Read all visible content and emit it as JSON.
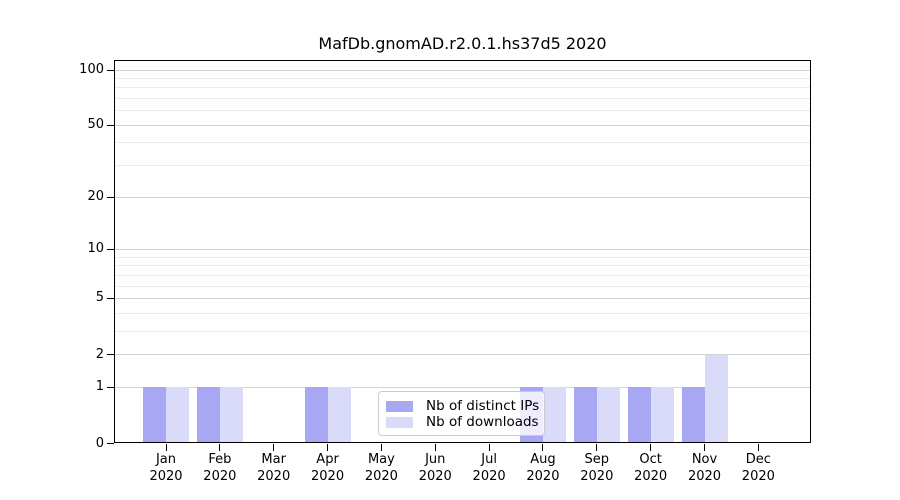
{
  "chart_data": {
    "type": "bar",
    "title": "MafDb.gnomAD.r2.0.1.hs37d5 2020",
    "xlabel": "",
    "ylabel": "",
    "categories": [
      "Jan 2020",
      "Feb 2020",
      "Mar 2020",
      "Apr 2020",
      "May 2020",
      "Jun 2020",
      "Jul 2020",
      "Aug 2020",
      "Sep 2020",
      "Oct 2020",
      "Nov 2020",
      "Dec 2020"
    ],
    "months": [
      "Jan",
      "Feb",
      "Mar",
      "Apr",
      "May",
      "Jun",
      "Jul",
      "Aug",
      "Sep",
      "Oct",
      "Nov",
      "Dec"
    ],
    "year": "2020",
    "series": [
      {
        "name": "Nb of distinct IPs",
        "color": "#a7a7f4",
        "values": [
          1,
          1,
          0,
          1,
          0,
          0,
          0,
          1,
          1,
          1,
          1,
          0
        ]
      },
      {
        "name": "Nb of downloads",
        "color": "#dadaf9",
        "values": [
          1,
          1,
          0,
          1,
          0,
          0,
          0,
          1,
          1,
          1,
          2,
          0
        ]
      }
    ],
    "y_scale": "log1p",
    "y_major_ticks": [
      0,
      1,
      2,
      5,
      10,
      20,
      50,
      100
    ],
    "y_minor_ticks": [
      3,
      4,
      6,
      7,
      8,
      9,
      30,
      40,
      60,
      70,
      80,
      90
    ],
    "ylim": [
      0,
      113
    ],
    "grid": "on",
    "legend_position": "inside lower center"
  },
  "colors": {
    "background": "#ffffff",
    "spine": "#000000",
    "grid_major": "#d4d4d4",
    "grid_minor": "#ececec",
    "legend_border": "#cccccc",
    "text": "#000000"
  }
}
